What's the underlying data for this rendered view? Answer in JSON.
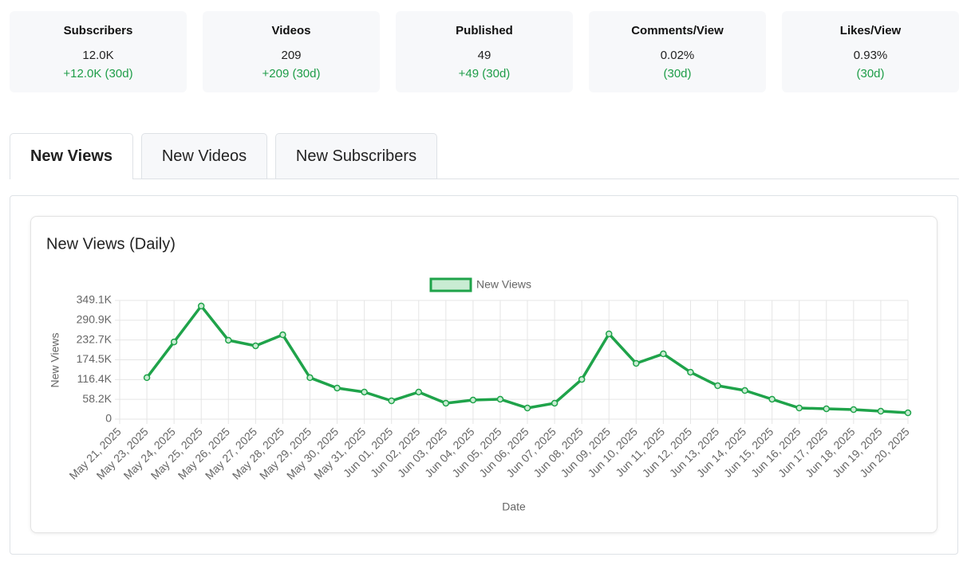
{
  "stats": [
    {
      "label": "Subscribers",
      "value": "12.0K",
      "change": "+12.0K (30d)"
    },
    {
      "label": "Videos",
      "value": "209",
      "change": "+209 (30d)"
    },
    {
      "label": "Published",
      "value": "49",
      "change": "+49 (30d)"
    },
    {
      "label": "Comments/View",
      "value": "0.02%",
      "change": "(30d)"
    },
    {
      "label": "Likes/View",
      "value": "0.93%",
      "change": "(30d)"
    }
  ],
  "tabs": [
    "New Views",
    "New Videos",
    "New Subscribers"
  ],
  "chart_data": {
    "type": "line",
    "title": "New Views (Daily)",
    "x_label": "Date",
    "y_label": "New Views",
    "legend": "top",
    "grid": true,
    "categories": [
      "May 21, 2025",
      "May 23, 2025",
      "May 24, 2025",
      "May 25, 2025",
      "May 26, 2025",
      "May 27, 2025",
      "May 28, 2025",
      "May 29, 2025",
      "May 30, 2025",
      "May 31, 2025",
      "Jun 01, 2025",
      "Jun 02, 2025",
      "Jun 03, 2025",
      "Jun 04, 2025",
      "Jun 05, 2025",
      "Jun 06, 2025",
      "Jun 07, 2025",
      "Jun 08, 2025",
      "Jun 09, 2025",
      "Jun 10, 2025",
      "Jun 11, 2025",
      "Jun 12, 2025",
      "Jun 13, 2025",
      "Jun 14, 2025",
      "Jun 15, 2025",
      "Jun 16, 2025",
      "Jun 17, 2025",
      "Jun 18, 2025",
      "Jun 19, 2025",
      "Jun 20, 2025"
    ],
    "series": [
      {
        "name": "New Views",
        "color": "#1fa34a",
        "fill": "#c9ecd3",
        "values": [
          null,
          122000,
          227000,
          332700,
          232000,
          215600,
          248000,
          122000,
          91400,
          79700,
          53900,
          79700,
          46900,
          56200,
          58600,
          32800,
          46900,
          117000,
          250700,
          164000,
          192000,
          138000,
          98400,
          84300,
          58600,
          32800,
          30500,
          28100,
          23400,
          18700
        ]
      }
    ],
    "ylim": [
      0,
      349098
    ],
    "yticks": [
      0,
      {
        "value": 58183,
        "label": "58.2K"
      },
      {
        "value": 116366,
        "label": "116.4K"
      },
      {
        "value": 174549,
        "label": "174.5K"
      },
      {
        "value": 232732,
        "label": "232.7K"
      },
      {
        "value": 290915,
        "label": "290.9K"
      },
      {
        "value": 349098,
        "label": "349.1K"
      }
    ]
  }
}
